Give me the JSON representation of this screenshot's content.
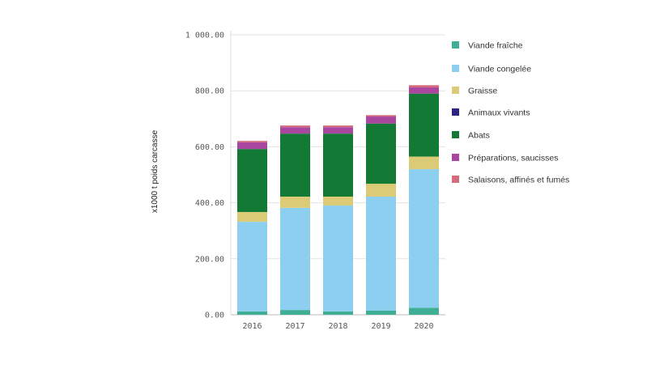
{
  "chart_data": {
    "type": "bar",
    "stacked": true,
    "title": "",
    "xlabel": "",
    "ylabel": "x1000 t poids carcasse",
    "ylim": [
      0,
      1000
    ],
    "yticks": [
      "0.00",
      "200.00",
      "400.00",
      "600.00",
      "800.00",
      "1 000.00"
    ],
    "ytick_values": [
      0,
      200,
      400,
      600,
      800,
      1000
    ],
    "grid": true,
    "legend_placement": "right",
    "categories": [
      "2016",
      "2017",
      "2018",
      "2019",
      "2020"
    ],
    "series": [
      {
        "name": "Viande fraîche",
        "color": "#3fae94",
        "values": [
          12,
          17,
          12,
          15,
          25
        ]
      },
      {
        "name": "Viande congelée",
        "color": "#8ccff0",
        "values": [
          320,
          365,
          378,
          407,
          495
        ]
      },
      {
        "name": "Graisse",
        "color": "#dccb76",
        "values": [
          35,
          40,
          32,
          46,
          45
        ]
      },
      {
        "name": "Animaux vivants",
        "color": "#2b2486",
        "values": [
          0,
          0,
          0,
          0,
          0
        ]
      },
      {
        "name": "Abats",
        "color": "#137a36",
        "values": [
          225,
          225,
          225,
          215,
          225
        ]
      },
      {
        "name": "Préparations, saucisses",
        "color": "#a9469f",
        "values": [
          24,
          23,
          23,
          25,
          22
        ]
      },
      {
        "name": "Salaisons, affinés et fumés",
        "color": "#d66b7b",
        "values": [
          5,
          6,
          6,
          5,
          8
        ]
      }
    ]
  }
}
